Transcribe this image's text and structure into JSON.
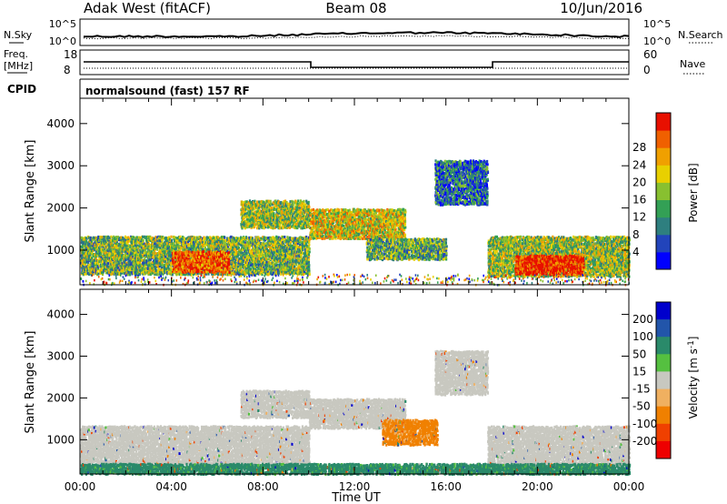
{
  "header": {
    "station": "Adak West (fitACF)",
    "beam": "Beam 08",
    "date": "10/Jun/2016"
  },
  "sky_panel": {
    "left_label": "N.Sky",
    "left_ticks": [
      "10^5",
      "10^0"
    ],
    "right_ticks": [
      "10^5",
      "10^0"
    ],
    "right_label": "N.Search"
  },
  "freq_panel": {
    "left_label_top": "Freq.",
    "left_label_unit": "[MHz]",
    "left_ticks": [
      "18",
      "8"
    ],
    "right_ticks": [
      "60",
      "0"
    ],
    "right_label": "Nave"
  },
  "cpid": {
    "label": "CPID",
    "text": "normalsound (fast) 157 RF"
  },
  "chart_data": [
    {
      "type": "heatmap",
      "name": "power",
      "ylabel": "Slant Range [km]",
      "yticks": [
        "1000",
        "2000",
        "3000",
        "4000"
      ],
      "ylim": [
        180,
        4600
      ],
      "xlim": [
        0,
        24
      ],
      "colorbar": {
        "label": "Power [dB]",
        "ticks": [
          "4",
          "8",
          "12",
          "16",
          "20",
          "24",
          "28"
        ],
        "range": [
          0,
          32
        ],
        "colors": [
          "#0000ff",
          "#2244bb",
          "#2e7f7f",
          "#33a055",
          "#88c030",
          "#e8d000",
          "#f0a000",
          "#f06000",
          "#e81000"
        ]
      },
      "regions": [
        {
          "x": [
            0.0,
            10.0
          ],
          "y": [
            450,
            1350
          ],
          "level": 0.45
        },
        {
          "x": [
            4.0,
            6.5
          ],
          "y": [
            500,
            1000
          ],
          "level": 0.85
        },
        {
          "x": [
            7.0,
            10.0
          ],
          "y": [
            1550,
            2200
          ],
          "level": 0.5
        },
        {
          "x": [
            10.0,
            14.2
          ],
          "y": [
            1300,
            2000
          ],
          "level": 0.6
        },
        {
          "x": [
            12.5,
            16.0
          ],
          "y": [
            800,
            1300
          ],
          "level": 0.4
        },
        {
          "x": [
            15.5,
            17.8
          ],
          "y": [
            2100,
            3150
          ],
          "level": 0.25
        },
        {
          "x": [
            17.8,
            24.0
          ],
          "y": [
            400,
            1350
          ],
          "level": 0.5
        },
        {
          "x": [
            19.0,
            22.0
          ],
          "y": [
            450,
            900
          ],
          "level": 0.95
        }
      ]
    },
    {
      "type": "heatmap",
      "name": "velocity",
      "ylabel": "Slant Range [km]",
      "xlabel": "Time UT",
      "xticks": [
        "00:00",
        "04:00",
        "08:00",
        "12:00",
        "16:00",
        "20:00",
        "00:00"
      ],
      "yticks": [
        "1000",
        "2000",
        "3000",
        "4000"
      ],
      "ylim": [
        180,
        4600
      ],
      "xlim": [
        0,
        24
      ],
      "colorbar": {
        "label": "Velocity [m s-1]",
        "ticks": [
          "200",
          "100",
          "50",
          "15",
          "-15",
          "-50",
          "-100",
          "-200"
        ],
        "colors": [
          "#0000cc",
          "#2255aa",
          "#2a8a6a",
          "#55c040",
          "#c8c8c0",
          "#f0b060",
          "#f08000",
          "#f04000",
          "#ee0000"
        ]
      },
      "regions": [
        {
          "x": [
            0.0,
            10.0
          ],
          "y": [
            450,
            1350
          ],
          "velocity": 0
        },
        {
          "x": [
            7.0,
            10.0
          ],
          "y": [
            1550,
            2200
          ],
          "velocity": 0
        },
        {
          "x": [
            10.0,
            14.2
          ],
          "y": [
            1300,
            2000
          ],
          "velocity": 0
        },
        {
          "x": [
            13.2,
            15.6
          ],
          "y": [
            900,
            1500
          ],
          "velocity": -60
        },
        {
          "x": [
            15.5,
            17.8
          ],
          "y": [
            2100,
            3150
          ],
          "velocity": 0
        },
        {
          "x": [
            17.8,
            24.0
          ],
          "y": [
            400,
            1350
          ],
          "velocity": 0
        },
        {
          "x": [
            0.0,
            24.0
          ],
          "y": [
            200,
            450
          ],
          "velocity": 40
        }
      ]
    }
  ]
}
